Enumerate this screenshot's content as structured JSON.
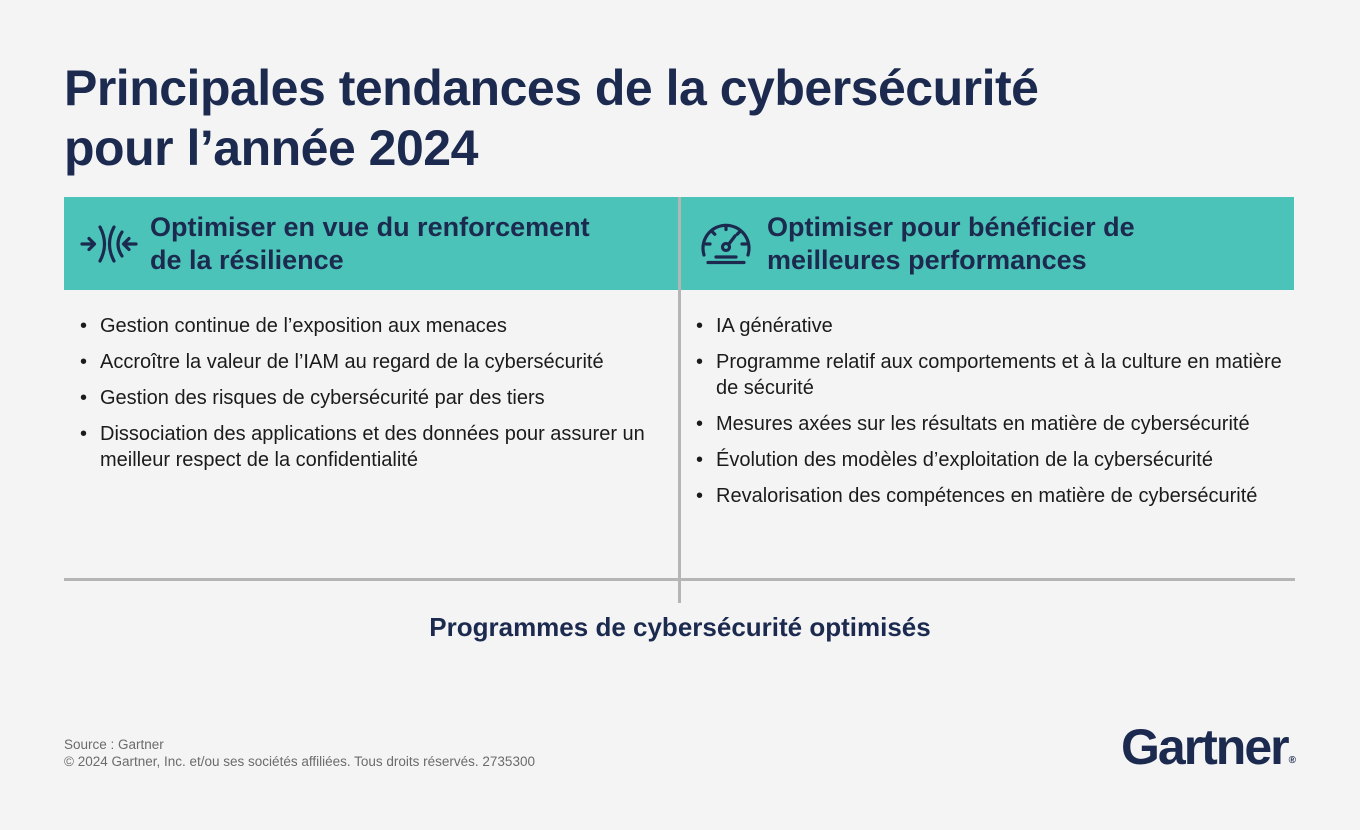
{
  "title": {
    "line1": "Principales tendances de la cybersécurité",
    "line2": "pour l’année 2024"
  },
  "left_column": {
    "icon": "converging-arrows-icon",
    "heading_line1": "Optimiser en vue du renforcement",
    "heading_line2": "de la résilience",
    "items": [
      "Gestion continue de l’exposition aux menaces",
      "Accroître la valeur de l’IAM au regard de la cybersécurité",
      "Gestion des risques de cybersécurité par des tiers",
      "Dissociation des applications et des données pour assurer un meilleur respect de la confidentialité"
    ]
  },
  "right_column": {
    "icon": "speedometer-icon",
    "heading_line1": "Optimiser pour bénéficier de",
    "heading_line2": "meilleures performances",
    "items": [
      "IA générative",
      "Programme relatif aux comportements et à la culture en matière de sécurité",
      "Mesures axées sur les résultats en matière de cybersécurité",
      "Évolution des modèles d’exploitation de la cybersécurité",
      "Revalorisation des compétences en matière de cybersécurité"
    ]
  },
  "bottom_label": "Programmes de cybersécurité optimisés",
  "footer": {
    "source": "Source : Gartner",
    "copyright": "© 2024 Gartner, Inc. et/ou ses sociétés affiliées. Tous droits réservés. 2735300"
  },
  "logo": {
    "text": "Gartner",
    "mark": "®"
  },
  "colors": {
    "navy": "#1b2a4e",
    "teal": "#4cc3b9",
    "background": "#f4f4f5",
    "divider": "#b5b5b5"
  }
}
